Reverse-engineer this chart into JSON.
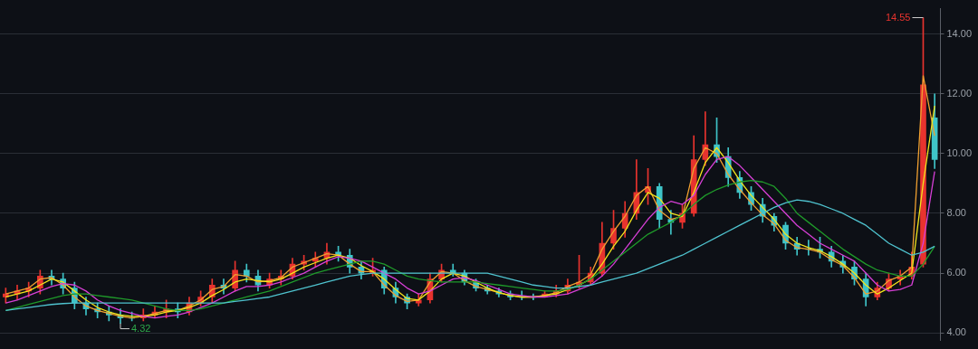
{
  "chart_data": {
    "type": "candlestick",
    "categories": [
      null,
      null,
      null,
      null,
      null,
      null,
      null,
      null,
      null,
      null,
      null,
      null,
      null,
      null,
      null,
      null,
      null,
      null,
      null,
      null,
      null,
      null,
      null,
      null,
      null,
      null,
      null,
      null,
      null,
      null,
      null,
      null,
      null,
      null,
      null,
      null,
      null,
      null,
      null,
      null,
      null,
      null,
      null,
      null,
      null,
      null,
      null,
      null,
      null,
      null,
      null,
      null,
      null,
      null,
      null,
      null,
      null,
      null,
      null,
      null,
      null,
      null,
      null,
      null,
      null,
      null,
      null,
      null,
      null,
      null,
      null,
      null,
      null,
      null,
      null,
      null,
      null,
      null,
      null,
      null,
      null,
      null
    ],
    "ohlc": [
      [
        5.2,
        5.5,
        5.0,
        5.3
      ],
      [
        5.3,
        5.6,
        5.1,
        5.4
      ],
      [
        5.4,
        5.7,
        5.2,
        5.5
      ],
      [
        5.5,
        6.1,
        5.3,
        5.9
      ],
      [
        5.9,
        6.1,
        5.6,
        5.8
      ],
      [
        5.8,
        6.0,
        5.3,
        5.5
      ],
      [
        5.5,
        5.7,
        4.8,
        5.0
      ],
      [
        5.0,
        5.2,
        4.6,
        4.8
      ],
      [
        4.8,
        5.0,
        4.5,
        4.7
      ],
      [
        4.7,
        4.9,
        4.4,
        4.6
      ],
      [
        4.6,
        4.8,
        4.32,
        4.5
      ],
      [
        4.5,
        4.7,
        4.4,
        4.5
      ],
      [
        4.5,
        4.8,
        4.4,
        4.6
      ],
      [
        4.6,
        4.9,
        4.5,
        4.7
      ],
      [
        4.7,
        5.1,
        4.5,
        4.8
      ],
      [
        4.8,
        5.0,
        4.5,
        4.7
      ],
      [
        4.7,
        5.2,
        4.6,
        5.0
      ],
      [
        5.0,
        5.4,
        4.9,
        5.2
      ],
      [
        5.2,
        5.8,
        5.0,
        5.6
      ],
      [
        5.6,
        5.8,
        5.3,
        5.5
      ],
      [
        5.5,
        6.4,
        5.4,
        6.1
      ],
      [
        6.1,
        6.3,
        5.7,
        5.9
      ],
      [
        5.9,
        6.1,
        5.4,
        5.6
      ],
      [
        5.6,
        6.0,
        5.5,
        5.8
      ],
      [
        5.8,
        6.1,
        5.6,
        5.9
      ],
      [
        5.9,
        6.5,
        5.8,
        6.3
      ],
      [
        6.3,
        6.6,
        6.1,
        6.4
      ],
      [
        6.4,
        6.7,
        6.2,
        6.5
      ],
      [
        6.5,
        7.0,
        6.3,
        6.7
      ],
      [
        6.7,
        6.9,
        6.4,
        6.6
      ],
      [
        6.6,
        6.8,
        6.0,
        6.2
      ],
      [
        6.2,
        6.4,
        5.8,
        6.0
      ],
      [
        6.0,
        6.5,
        5.9,
        6.1
      ],
      [
        6.1,
        6.2,
        5.3,
        5.5
      ],
      [
        5.5,
        5.7,
        5.0,
        5.2
      ],
      [
        5.2,
        5.3,
        4.8,
        5.0
      ],
      [
        5.0,
        5.3,
        4.9,
        5.1
      ],
      [
        5.1,
        6.0,
        5.0,
        5.8
      ],
      [
        5.8,
        6.3,
        5.7,
        6.1
      ],
      [
        6.1,
        6.3,
        5.9,
        6.0
      ],
      [
        6.0,
        6.1,
        5.6,
        5.7
      ],
      [
        5.7,
        5.8,
        5.4,
        5.5
      ],
      [
        5.5,
        5.6,
        5.3,
        5.4
      ],
      [
        5.4,
        5.5,
        5.2,
        5.3
      ],
      [
        5.3,
        5.4,
        5.1,
        5.2
      ],
      [
        5.2,
        5.4,
        5.1,
        5.2
      ],
      [
        5.2,
        5.3,
        5.1,
        5.2
      ],
      [
        5.2,
        5.4,
        5.2,
        5.3
      ],
      [
        5.3,
        5.6,
        5.2,
        5.4
      ],
      [
        5.4,
        5.8,
        5.3,
        5.6
      ],
      [
        5.6,
        6.6,
        5.5,
        5.7
      ],
      [
        5.7,
        6.2,
        5.6,
        6.0
      ],
      [
        6.0,
        7.7,
        5.9,
        7.0
      ],
      [
        7.0,
        8.1,
        6.8,
        7.5
      ],
      [
        7.5,
        8.4,
        7.2,
        8.0
      ],
      [
        8.0,
        9.8,
        7.8,
        8.7
      ],
      [
        8.7,
        9.5,
        8.3,
        8.9
      ],
      [
        8.9,
        9.0,
        7.5,
        7.8
      ],
      [
        7.8,
        8.1,
        7.3,
        7.7
      ],
      [
        7.7,
        8.3,
        7.5,
        8.0
      ],
      [
        8.0,
        10.6,
        7.9,
        9.8
      ],
      [
        9.8,
        11.4,
        9.6,
        10.3
      ],
      [
        10.3,
        11.2,
        9.7,
        9.9
      ],
      [
        9.9,
        10.2,
        8.9,
        9.2
      ],
      [
        9.2,
        9.4,
        8.5,
        8.7
      ],
      [
        8.7,
        8.9,
        8.1,
        8.3
      ],
      [
        8.3,
        8.5,
        7.7,
        7.9
      ],
      [
        7.9,
        8.0,
        7.4,
        7.6
      ],
      [
        7.6,
        7.7,
        6.8,
        7.0
      ],
      [
        7.0,
        7.2,
        6.6,
        6.8
      ],
      [
        6.8,
        7.1,
        6.6,
        6.8
      ],
      [
        6.8,
        7.2,
        6.5,
        6.7
      ],
      [
        6.7,
        6.9,
        6.2,
        6.4
      ],
      [
        6.4,
        6.6,
        6.0,
        6.2
      ],
      [
        6.2,
        6.4,
        5.6,
        5.8
      ],
      [
        5.8,
        6.0,
        4.9,
        5.2
      ],
      [
        5.2,
        5.7,
        5.1,
        5.5
      ],
      [
        5.5,
        6.0,
        5.4,
        5.8
      ],
      [
        5.8,
        6.1,
        5.6,
        5.9
      ],
      [
        5.9,
        6.7,
        5.8,
        6.2
      ],
      [
        6.3,
        14.55,
        6.2,
        12.3
      ],
      [
        11.2,
        12.0,
        9.5,
        9.8
      ]
    ],
    "colors": [
      "#e8332e",
      "#e8332e",
      "#e8332e",
      "#e8332e",
      "#3fc4c8",
      "#3fc4c8",
      "#3fc4c8",
      "#3fc4c8",
      "#3fc4c8",
      "#3fc4c8",
      "#3fc4c8",
      "#3fc4c8",
      "#e8332e",
      "#e8332e",
      "#e8332e",
      "#3fc4c8",
      "#e8332e",
      "#e8332e",
      "#e8332e",
      "#3fc4c8",
      "#e8332e",
      "#3fc4c8",
      "#3fc4c8",
      "#e8332e",
      "#e8332e",
      "#e8332e",
      "#e8332e",
      "#e8332e",
      "#e8332e",
      "#3fc4c8",
      "#3fc4c8",
      "#3fc4c8",
      "#e8332e",
      "#3fc4c8",
      "#3fc4c8",
      "#3fc4c8",
      "#e8332e",
      "#e8332e",
      "#e8332e",
      "#3fc4c8",
      "#3fc4c8",
      "#3fc4c8",
      "#3fc4c8",
      "#3fc4c8",
      "#3fc4c8",
      "#3fc4c8",
      "#3fc4c8",
      "#e8332e",
      "#e8332e",
      "#e8332e",
      "#e8332e",
      "#e8332e",
      "#e8332e",
      "#e8332e",
      "#e8332e",
      "#e8332e",
      "#e8332e",
      "#3fc4c8",
      "#3fc4c8",
      "#e8332e",
      "#e8332e",
      "#e8332e",
      "#3fc4c8",
      "#3fc4c8",
      "#3fc4c8",
      "#3fc4c8",
      "#3fc4c8",
      "#3fc4c8",
      "#3fc4c8",
      "#3fc4c8",
      "#3fc4c8",
      "#3fc4c8",
      "#3fc4c8",
      "#3fc4c8",
      "#3fc4c8",
      "#3fc4c8",
      "#e8332e",
      "#e8332e",
      "#e8332e",
      "#e8332e",
      "#e8332e",
      "#3fc4c8"
    ],
    "series": [
      {
        "type": "line",
        "color": "#4fc3cf",
        "values": [
          4.75,
          4.8,
          4.85,
          4.9,
          4.95,
          4.98,
          5.0,
          5.0,
          5.0,
          5.0,
          5.0,
          5.0,
          5.0,
          5.0,
          5.0,
          5.0,
          5.0,
          5.0,
          5.0,
          5.0,
          5.05,
          5.1,
          5.15,
          5.2,
          5.3,
          5.4,
          5.5,
          5.6,
          5.7,
          5.8,
          5.9,
          5.95,
          6.0,
          6.0,
          6.0,
          6.0,
          6.0,
          6.0,
          6.0,
          6.0,
          6.0,
          6.0,
          6.0,
          5.9,
          5.8,
          5.7,
          5.6,
          5.55,
          5.5,
          5.5,
          5.55,
          5.6,
          5.7,
          5.8,
          5.9,
          6.0,
          6.15,
          6.3,
          6.45,
          6.6,
          6.8,
          7.0,
          7.2,
          7.4,
          7.6,
          7.8,
          8.0,
          8.2,
          8.35,
          8.45,
          8.4,
          8.3,
          8.15,
          8.0,
          7.8,
          7.6,
          7.3,
          7.0,
          6.8,
          6.6,
          6.7,
          6.9
        ]
      },
      {
        "type": "line",
        "color": "#1f9a2a",
        "values": [
          4.75,
          4.85,
          4.95,
          5.05,
          5.15,
          5.25,
          5.3,
          5.3,
          5.25,
          5.2,
          5.15,
          5.1,
          5.0,
          4.9,
          4.8,
          4.75,
          4.75,
          4.8,
          4.9,
          5.0,
          5.1,
          5.2,
          5.3,
          5.4,
          5.55,
          5.7,
          5.85,
          6.0,
          6.1,
          6.2,
          6.3,
          6.4,
          6.4,
          6.3,
          6.1,
          5.9,
          5.8,
          5.75,
          5.7,
          5.7,
          5.7,
          5.7,
          5.65,
          5.6,
          5.55,
          5.5,
          5.45,
          5.4,
          5.4,
          5.45,
          5.6,
          5.8,
          6.1,
          6.4,
          6.7,
          7.0,
          7.3,
          7.5,
          7.7,
          7.95,
          8.3,
          8.6,
          8.8,
          8.95,
          9.05,
          9.1,
          9.05,
          8.9,
          8.5,
          8.0,
          7.7,
          7.4,
          7.1,
          6.8,
          6.55,
          6.3,
          6.1,
          6.0,
          5.9,
          5.9,
          6.3,
          6.9
        ]
      },
      {
        "type": "line",
        "color": "#d63fd6",
        "values": [
          5.0,
          5.1,
          5.25,
          5.4,
          5.55,
          5.65,
          5.6,
          5.4,
          5.1,
          4.9,
          4.75,
          4.65,
          4.55,
          4.5,
          4.55,
          4.6,
          4.7,
          4.85,
          5.0,
          5.2,
          5.4,
          5.55,
          5.55,
          5.6,
          5.7,
          5.85,
          6.0,
          6.2,
          6.4,
          6.55,
          6.5,
          6.4,
          6.2,
          6.0,
          5.8,
          5.5,
          5.3,
          5.4,
          5.6,
          5.8,
          5.85,
          5.75,
          5.6,
          5.45,
          5.3,
          5.25,
          5.2,
          5.2,
          5.25,
          5.3,
          5.45,
          5.6,
          5.9,
          6.3,
          6.8,
          7.3,
          7.8,
          8.2,
          8.4,
          8.3,
          8.6,
          9.3,
          9.8,
          9.9,
          9.6,
          9.2,
          8.8,
          8.4,
          8.0,
          7.6,
          7.3,
          7.0,
          6.8,
          6.6,
          6.4,
          6.0,
          5.6,
          5.4,
          5.45,
          5.6,
          7.0,
          9.4
        ]
      },
      {
        "type": "line",
        "color": "#f2e51c",
        "values": [
          5.2,
          5.3,
          5.4,
          5.6,
          5.8,
          5.7,
          5.4,
          5.1,
          4.85,
          4.7,
          4.6,
          4.55,
          4.55,
          4.6,
          4.7,
          4.75,
          4.85,
          5.0,
          5.25,
          5.45,
          5.7,
          5.8,
          5.75,
          5.7,
          5.8,
          6.0,
          6.2,
          6.35,
          6.5,
          6.6,
          6.5,
          6.25,
          6.05,
          5.8,
          5.45,
          5.15,
          5.1,
          5.4,
          5.8,
          6.0,
          5.9,
          5.7,
          5.5,
          5.35,
          5.25,
          5.2,
          5.2,
          5.25,
          5.3,
          5.45,
          5.6,
          5.8,
          6.3,
          6.9,
          7.4,
          8.1,
          8.7,
          8.5,
          8.0,
          7.9,
          8.7,
          9.7,
          10.2,
          9.7,
          9.1,
          8.6,
          8.2,
          7.8,
          7.3,
          7.0,
          6.85,
          6.75,
          6.55,
          6.3,
          6.0,
          5.6,
          5.3,
          5.5,
          5.75,
          6.0,
          9.0,
          11.6
        ]
      },
      {
        "type": "line",
        "color": "#f0a030",
        "values": [
          5.3,
          5.4,
          5.5,
          5.8,
          5.85,
          5.6,
          5.2,
          4.9,
          4.75,
          4.65,
          4.55,
          4.5,
          4.55,
          4.65,
          4.75,
          4.75,
          4.9,
          5.1,
          5.45,
          5.55,
          5.95,
          5.9,
          5.7,
          5.75,
          5.85,
          6.2,
          6.35,
          6.5,
          6.65,
          6.6,
          6.3,
          6.05,
          6.05,
          5.6,
          5.25,
          5.05,
          5.1,
          5.7,
          6.05,
          6.0,
          5.75,
          5.55,
          5.45,
          5.35,
          5.25,
          5.2,
          5.2,
          5.25,
          5.35,
          5.55,
          5.7,
          5.95,
          6.8,
          7.4,
          7.9,
          8.6,
          8.9,
          8.1,
          7.8,
          7.9,
          9.5,
          10.2,
          10.0,
          9.3,
          8.8,
          8.35,
          7.95,
          7.65,
          7.1,
          6.85,
          6.8,
          6.7,
          6.45,
          6.25,
          5.85,
          5.3,
          5.4,
          5.75,
          5.9,
          6.2,
          12.6,
          10.6
        ]
      }
    ],
    "ylim": [
      3.75,
      14.85
    ],
    "yticks": [
      {
        "value": 4,
        "label": "4.00"
      },
      {
        "value": 6,
        "label": "6.00"
      },
      {
        "value": 8,
        "label": "8.00"
      },
      {
        "value": 10,
        "label": "10.00"
      },
      {
        "value": 12,
        "label": "12.00"
      },
      {
        "value": 14,
        "label": "14.00"
      }
    ],
    "grid": "y",
    "tick_labels": "y",
    "annotations": [
      "14.55",
      {
        "text": "4.32",
        "y": 4.32
      }
    ]
  }
}
